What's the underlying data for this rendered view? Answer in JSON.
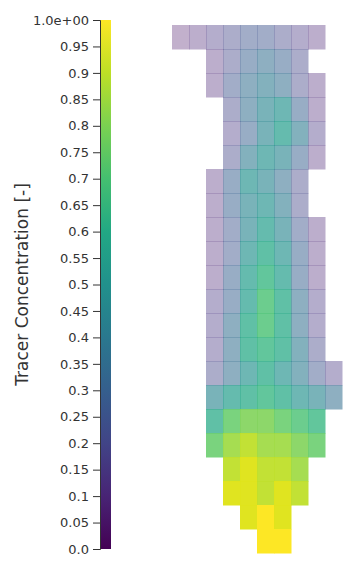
{
  "chart_data": {
    "type": "heatmap",
    "cells": [
      [
        0.05,
        0.1,
        0.15,
        0.2,
        0.25,
        0.25,
        0.2,
        0.15,
        0.1,
        null
      ],
      [
        null,
        null,
        0.1,
        0.2,
        0.3,
        0.35,
        0.3,
        0.2,
        null,
        null
      ],
      [
        null,
        null,
        0.1,
        0.25,
        0.35,
        0.4,
        0.35,
        0.2,
        0.1,
        null
      ],
      [
        null,
        null,
        null,
        0.2,
        0.35,
        0.45,
        0.5,
        0.3,
        0.1,
        null
      ],
      [
        null,
        null,
        null,
        0.15,
        0.3,
        0.45,
        0.55,
        0.4,
        0.15,
        null
      ],
      [
        null,
        null,
        null,
        0.2,
        0.4,
        0.5,
        0.45,
        0.3,
        0.1,
        null
      ],
      [
        null,
        null,
        0.1,
        0.3,
        0.5,
        0.45,
        0.35,
        0.2,
        null,
        null
      ],
      [
        null,
        null,
        0.1,
        0.3,
        0.45,
        0.5,
        0.4,
        0.2,
        null,
        null
      ],
      [
        null,
        null,
        0.1,
        0.25,
        0.45,
        0.55,
        0.45,
        0.25,
        0.1,
        null
      ],
      [
        null,
        null,
        0.1,
        0.25,
        0.5,
        0.6,
        0.5,
        0.3,
        0.1,
        null
      ],
      [
        null,
        null,
        0.1,
        0.3,
        0.55,
        0.65,
        0.55,
        0.3,
        0.1,
        null
      ],
      [
        null,
        null,
        0.15,
        0.3,
        0.55,
        0.7,
        0.6,
        0.35,
        0.15,
        null
      ],
      [
        null,
        null,
        0.15,
        0.35,
        0.6,
        0.7,
        0.6,
        0.35,
        0.15,
        null
      ],
      [
        null,
        null,
        0.15,
        0.35,
        0.6,
        0.65,
        0.6,
        0.4,
        0.2,
        null
      ],
      [
        null,
        null,
        0.2,
        0.35,
        0.5,
        0.6,
        0.5,
        0.4,
        0.25,
        0.15
      ],
      [
        null,
        null,
        0.45,
        0.55,
        0.6,
        0.65,
        0.6,
        0.5,
        0.45,
        0.35
      ],
      [
        null,
        null,
        0.6,
        0.75,
        0.8,
        0.8,
        0.75,
        0.7,
        0.65,
        null
      ],
      [
        null,
        null,
        0.75,
        0.85,
        0.9,
        0.85,
        0.85,
        0.8,
        0.75,
        null
      ],
      [
        null,
        null,
        null,
        0.9,
        0.95,
        0.9,
        0.9,
        0.85,
        null,
        null
      ],
      [
        null,
        null,
        null,
        0.95,
        0.95,
        0.9,
        0.95,
        0.9,
        null,
        null
      ],
      [
        null,
        null,
        null,
        null,
        0.95,
        1.0,
        0.95,
        null,
        null,
        null
      ],
      [
        null,
        null,
        null,
        null,
        null,
        1.0,
        1.0,
        null,
        null,
        null
      ]
    ],
    "colorbar": {
      "title": "Tracer Concentration [-]",
      "range": [
        0,
        1
      ],
      "ticks": [
        {
          "value": 0,
          "label": "0.0"
        },
        0.05,
        0.1,
        0.15,
        0.2,
        0.25,
        0.3,
        0.35,
        0.4,
        0.45,
        0.5,
        0.55,
        0.6,
        0.65,
        0.7,
        0.75,
        0.8,
        0.85,
        0.9,
        0.95,
        {
          "value": 1,
          "label": "1.0e+00"
        }
      ]
    }
  }
}
